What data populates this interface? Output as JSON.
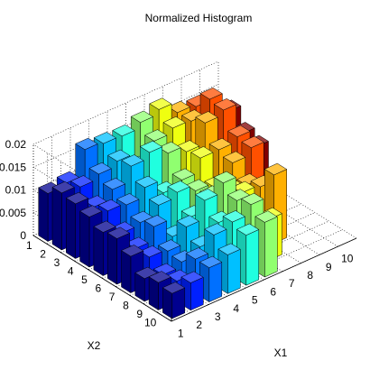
{
  "chart_data": {
    "type": "bar3d",
    "title": "Normalized Histogram",
    "xlabel": "X1",
    "ylabel": "X2",
    "zlabel": "",
    "x_ticks": [
      "1",
      "2",
      "3",
      "4",
      "5",
      "6",
      "7",
      "8",
      "9",
      "10"
    ],
    "y_ticks": [
      "1",
      "2",
      "3",
      "4",
      "5",
      "6",
      "7",
      "8",
      "9",
      "10"
    ],
    "z_ticks": [
      "0",
      "0.005",
      "0.01",
      "0.015",
      "0.02"
    ],
    "zlim": [
      0,
      0.02
    ],
    "grid": true,
    "colormap_by_x": [
      "#00008f",
      "#0020ff",
      "#0070ff",
      "#00c0ff",
      "#20ffdf",
      "#90ff70",
      "#efff10",
      "#ffb000",
      "#ff5000",
      "#800000"
    ],
    "values": [
      [
        0.0105,
        0.011,
        0.0165,
        0.016,
        0.0158,
        0.017,
        0.018,
        0.0155,
        0.015,
        0.0118
      ],
      [
        0.0125,
        0.012,
        0.013,
        0.014,
        0.0108,
        0.0148,
        0.0158,
        0.0155,
        0.0185,
        0.014
      ],
      [
        0.012,
        0.0095,
        0.0115,
        0.0148,
        0.016,
        0.014,
        0.0125,
        0.017,
        0.018,
        0.011
      ],
      [
        0.011,
        0.0105,
        0.01,
        0.012,
        0.009,
        0.01,
        0.013,
        0.013,
        0.014,
        0.01
      ],
      [
        0.0095,
        0.0075,
        0.008,
        0.01,
        0.011,
        0.0095,
        0.0085,
        0.012,
        0.0135,
        0.0
      ],
      [
        0.01,
        0.006,
        0.009,
        0.005,
        0.0075,
        0.01,
        0.01,
        0.009,
        0.0,
        0.0
      ],
      [
        0.008,
        0.006,
        0.0055,
        0.009,
        0.013,
        0.015,
        0.011,
        0.0105,
        0.0,
        0.0
      ],
      [
        0.005,
        0.004,
        0.005,
        0.0065,
        0.01,
        0.013,
        0.0005,
        0.015,
        0.0,
        0.0
      ],
      [
        0.006,
        0.0045,
        0.0075,
        0.011,
        0.012,
        0.014,
        0.009,
        0.0,
        0.0,
        0.0
      ],
      [
        0.0055,
        0.006,
        0.0075,
        0.0085,
        0.011,
        0.012,
        0.0,
        0.0,
        0.0,
        0.0
      ]
    ]
  }
}
